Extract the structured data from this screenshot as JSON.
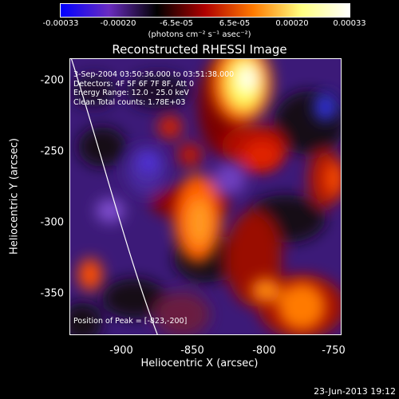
{
  "colorbar": {
    "ticks": [
      "-0.00033",
      "-0.00020",
      "-6.5e-05",
      "6.5e-05",
      "0.00020",
      "0.00033"
    ],
    "units": "(photons cm⁻² s⁻¹ asec⁻²)",
    "colors": [
      "#0000ff",
      "#6a2cc0",
      "#000000",
      "#b00000",
      "#ff7a00",
      "#ffff80",
      "#ffffff"
    ]
  },
  "title": "Reconstructed RHESSI Image",
  "info": {
    "line1": "3-Sep-2004 03:50:36.000 to 03:51:38.000",
    "line2": "Detectors: 4F 5F 6F 7F 8F, Att 0",
    "line3": "Energy Range: 12.0 - 25.0 keV",
    "line4": "Clean    Total counts: 1.78E+03"
  },
  "peak": "Position of Peak = [-823,-200]",
  "axes": {
    "xlabel": "Heliocentric X (arcsec)",
    "ylabel": "Heliocentric Y (arcsec)",
    "xticks": [
      "-900",
      "-850",
      "-800",
      "-750"
    ],
    "yticks": [
      "-200",
      "-250",
      "-300",
      "-350"
    ]
  },
  "timestamp": "23-Jun-2013 19:12"
}
